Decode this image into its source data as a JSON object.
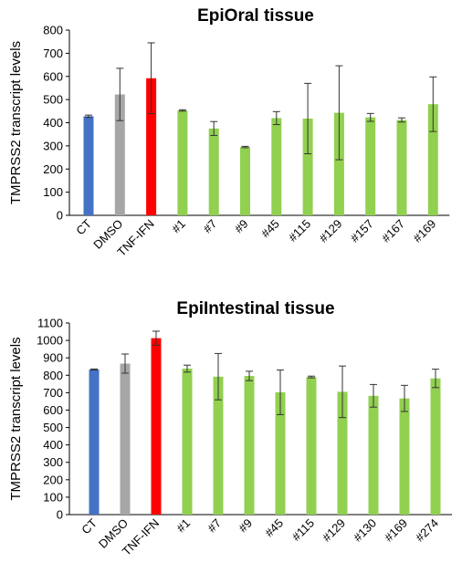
{
  "chart_data": [
    {
      "type": "bar",
      "title": "EpiOral tissue",
      "xlabel": "",
      "ylabel": "TMPRSS2  transcript levels",
      "ylim": [
        0,
        800
      ],
      "yticks": [
        0,
        100,
        200,
        300,
        400,
        500,
        600,
        700,
        800
      ],
      "grid": false,
      "error_bars": true,
      "categories": [
        "CT",
        "DMSO",
        "TNF-IFN",
        "#1",
        "#7",
        "#9",
        "#45",
        "#115",
        "#129",
        "#157",
        "#167",
        "#169"
      ],
      "values": [
        428,
        522,
        592,
        453,
        375,
        295,
        420,
        418,
        443,
        423,
        412,
        480
      ],
      "errors": [
        5,
        113,
        153,
        3,
        30,
        3,
        28,
        152,
        203,
        17,
        9,
        118
      ],
      "colors": [
        "#4472C4",
        "#A6A6A6",
        "#FF0000",
        "#92D050",
        "#92D050",
        "#92D050",
        "#92D050",
        "#92D050",
        "#92D050",
        "#92D050",
        "#92D050",
        "#92D050"
      ]
    },
    {
      "type": "bar",
      "title": "EpiIntestinal tissue",
      "xlabel": "",
      "ylabel": "TMPRSS2  transcript levels",
      "ylim": [
        0,
        1100
      ],
      "yticks": [
        0,
        100,
        200,
        300,
        400,
        500,
        600,
        700,
        800,
        900,
        1000,
        1100
      ],
      "grid": false,
      "error_bars": true,
      "categories": [
        "CT",
        "DMSO",
        "TNF-IFN",
        "#1",
        "#7",
        "#9",
        "#45",
        "#115",
        "#129",
        "#130",
        "#169",
        "#274"
      ],
      "values": [
        833,
        867,
        1013,
        838,
        792,
        796,
        702,
        790,
        705,
        682,
        667,
        782
      ],
      "errors": [
        3,
        55,
        40,
        20,
        133,
        27,
        128,
        5,
        148,
        65,
        75,
        53
      ],
      "colors": [
        "#4472C4",
        "#A6A6A6",
        "#FF0000",
        "#92D050",
        "#92D050",
        "#92D050",
        "#92D050",
        "#92D050",
        "#92D050",
        "#92D050",
        "#92D050",
        "#92D050"
      ]
    }
  ]
}
